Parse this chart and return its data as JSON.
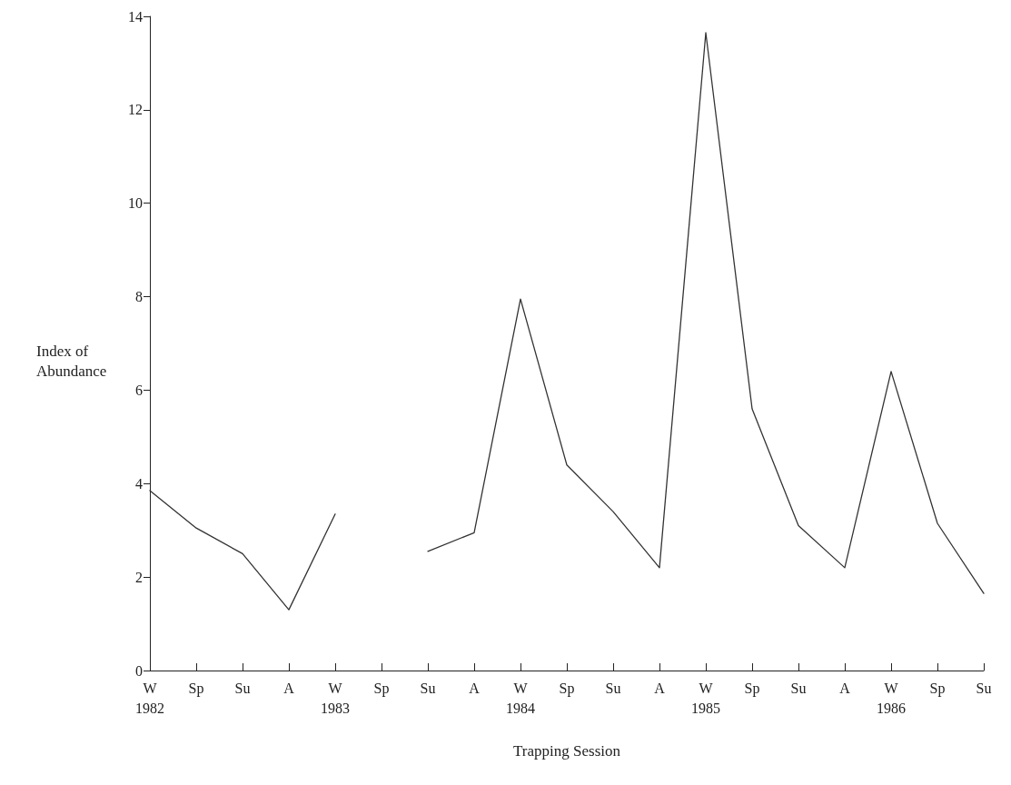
{
  "chart_data": {
    "type": "line",
    "xlabel": "Trapping Session",
    "ylabel": "Index of Abundance",
    "categories": [
      "W\n1982",
      "Sp",
      "Su",
      "A",
      "W\n1983",
      "Sp",
      "Su",
      "A",
      "W\n1984",
      "Sp",
      "Su",
      "A",
      "W\n1985",
      "Sp",
      "Su",
      "A",
      "W\n1986",
      "Sp",
      "Su"
    ],
    "series": [
      {
        "color": "#333333",
        "values": [
          3.85,
          3.05,
          2.5,
          1.3,
          3.35,
          null,
          2.55,
          2.95,
          7.95,
          4.4,
          3.4,
          2.2,
          13.65,
          5.6,
          3.1,
          2.2,
          6.4,
          3.15,
          1.65
        ]
      }
    ],
    "ylim": [
      0,
      14
    ],
    "yticks": [
      0,
      2,
      4,
      6,
      8,
      10,
      12,
      14
    ],
    "grid": false,
    "marker": "none",
    "line_style": "solid"
  }
}
